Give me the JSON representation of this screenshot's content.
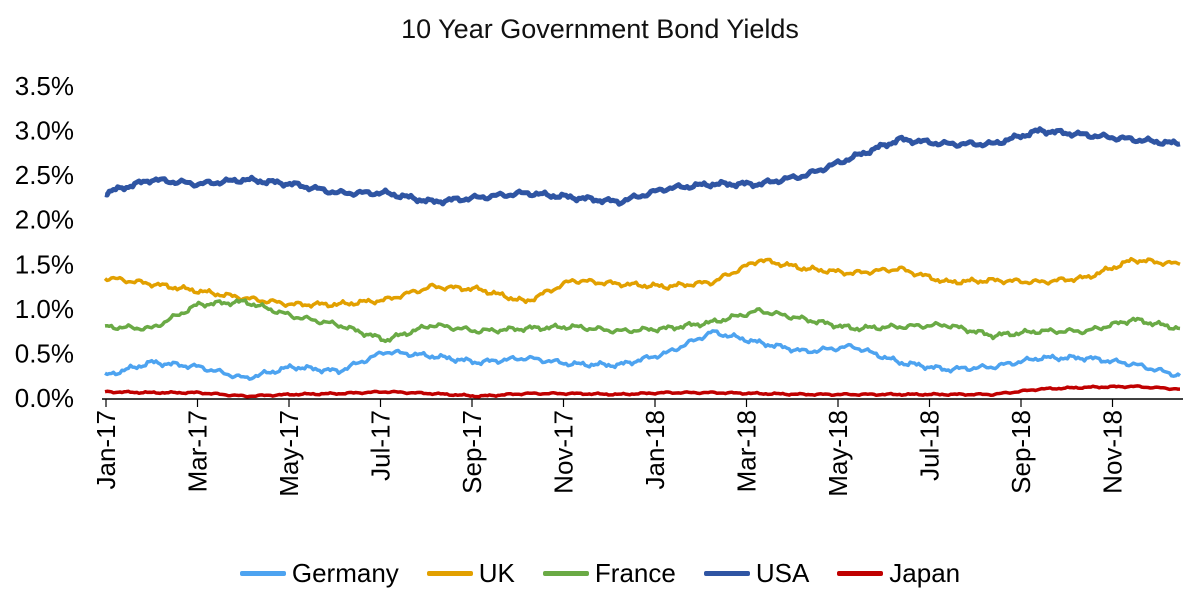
{
  "chart_data": {
    "type": "line",
    "title": "10 Year Government Bond Yields",
    "xlabel": "",
    "ylabel": "",
    "x_tick_labels": [
      "Jan-17",
      "Mar-17",
      "May-17",
      "Jul-17",
      "Sep-17",
      "Nov-17",
      "Jan-18",
      "Mar-18",
      "May-18",
      "Jul-18",
      "Sep-18",
      "Nov-18"
    ],
    "x_range": [
      "2017-01-01",
      "2018-12-31"
    ],
    "y_tick_labels": [
      "0.0%",
      "0.5%",
      "1.0%",
      "1.5%",
      "2.0%",
      "2.5%",
      "3.0%",
      "3.5%"
    ],
    "ylim": [
      0.0,
      3.5
    ],
    "y_format": "percent",
    "grid": false,
    "legend_position": "bottom",
    "x": [
      "2017-01",
      "2017-02",
      "2017-03",
      "2017-04",
      "2017-05",
      "2017-06",
      "2017-07",
      "2017-08",
      "2017-09",
      "2017-10",
      "2017-11",
      "2017-12",
      "2018-01",
      "2018-02",
      "2018-03",
      "2018-04",
      "2018-05",
      "2018-06",
      "2018-07",
      "2018-08",
      "2018-09",
      "2018-10",
      "2018-11",
      "2018-12"
    ],
    "series": [
      {
        "name": "Germany",
        "color": "#4da3f0",
        "values": [
          0.25,
          0.4,
          0.35,
          0.22,
          0.35,
          0.3,
          0.52,
          0.47,
          0.4,
          0.45,
          0.38,
          0.37,
          0.5,
          0.74,
          0.62,
          0.52,
          0.58,
          0.4,
          0.32,
          0.35,
          0.45,
          0.45,
          0.38,
          0.25
        ]
      },
      {
        "name": "UK",
        "color": "#e2a000",
        "values": [
          1.35,
          1.28,
          1.2,
          1.12,
          1.05,
          1.05,
          1.1,
          1.25,
          1.22,
          1.08,
          1.32,
          1.28,
          1.25,
          1.3,
          1.55,
          1.45,
          1.4,
          1.45,
          1.3,
          1.32,
          1.3,
          1.35,
          1.55,
          1.5
        ]
      },
      {
        "name": "France",
        "color": "#6aaa45",
        "values": [
          0.8,
          0.78,
          1.05,
          1.08,
          0.92,
          0.82,
          0.65,
          0.82,
          0.75,
          0.78,
          0.8,
          0.75,
          0.78,
          0.85,
          0.98,
          0.88,
          0.78,
          0.8,
          0.82,
          0.7,
          0.75,
          0.75,
          0.88,
          0.78
        ]
      },
      {
        "name": "USA",
        "color": "#2f55a3",
        "values": [
          2.3,
          2.45,
          2.4,
          2.45,
          2.4,
          2.3,
          2.3,
          2.2,
          2.25,
          2.3,
          2.25,
          2.2,
          2.35,
          2.4,
          2.4,
          2.5,
          2.7,
          2.9,
          2.85,
          2.85,
          3.0,
          2.95,
          2.9,
          2.85
        ]
      },
      {
        "name": "Japan",
        "color": "#c00000",
        "values": [
          0.07,
          0.06,
          0.06,
          0.02,
          0.04,
          0.05,
          0.07,
          0.05,
          0.02,
          0.05,
          0.05,
          0.04,
          0.06,
          0.06,
          0.05,
          0.04,
          0.04,
          0.04,
          0.04,
          0.04,
          0.1,
          0.12,
          0.13,
          0.1
        ]
      }
    ]
  }
}
